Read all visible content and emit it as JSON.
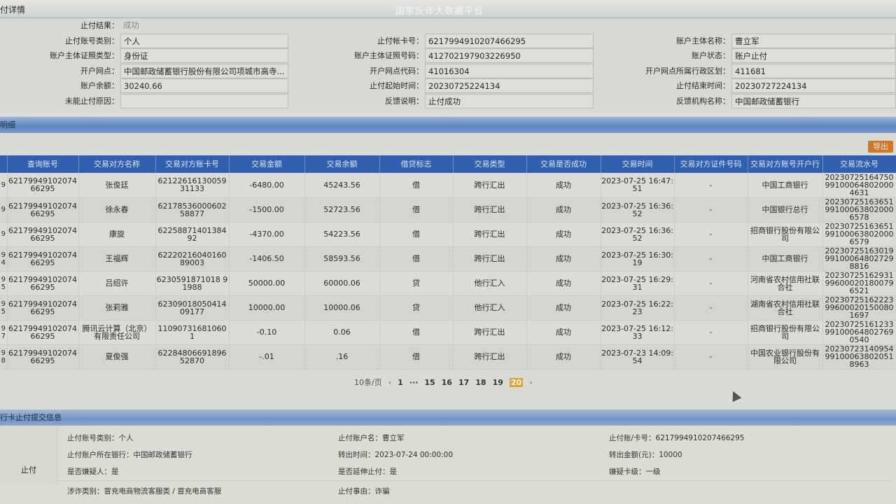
{
  "header": {
    "title": "付详情",
    "watermark": "国家反诈大数据平台"
  },
  "detail": {
    "rows": [
      [
        {
          "label": "止付结果：",
          "value": "成功"
        }
      ],
      [
        {
          "label": "止付账号类别：",
          "value": "个人"
        },
        {
          "label": "止付帐卡号：",
          "value": "6217994910207466295"
        },
        {
          "label": "账户主体名称：",
          "value": "曹立军"
        }
      ],
      [
        {
          "label": "账户主体证照类型：",
          "value": "身份证"
        },
        {
          "label": "账户主体证照号码：",
          "value": "412702197903226950"
        },
        {
          "label": "账户状态：",
          "value": "账户止付"
        }
      ],
      [
        {
          "label": "开户网点：",
          "value": "中国邮政储蓄银行股份有限公司项城市高寺..."
        },
        {
          "label": "开户网点代码：",
          "value": "41016304"
        },
        {
          "label": "开户网点所属行政区划：",
          "value": "411681"
        }
      ],
      [
        {
          "label": "账户余额：",
          "value": "30240.66"
        },
        {
          "label": "止付起始时间：",
          "value": "20230725224134"
        },
        {
          "label": "止付结束时间：",
          "value": "20230727224134"
        }
      ],
      [
        {
          "label": "未能止付原因：",
          "value": ""
        },
        {
          "label": "反馈说明：",
          "value": "止付成功"
        },
        {
          "label": "反馈机构名称：",
          "value": "中国邮政储蓄银行"
        }
      ]
    ]
  },
  "detail_section": {
    "title": "明细",
    "export_label": "导出"
  },
  "table": {
    "columns": [
      "",
      "查询账号",
      "交易对方名称",
      "交易对方账卡号",
      "交易金额",
      "交易余额",
      "借贷标志",
      "交易类型",
      "交易是否成功",
      "交易时间",
      "交易对方证件号码",
      "交易对方账号开户行",
      "交易流水号"
    ],
    "rows": [
      [
        "9",
        "6217994910207466295",
        "张俊廷",
        "6212261613005931133",
        "-6480.00",
        "45243.56",
        "借",
        "跨行汇出",
        "成功",
        "2023-07-25 16:47:51",
        "-",
        "中国工商银行",
        "20230725164750991000648020004631"
      ],
      [
        "9",
        "6217994910207466295",
        "徐永春",
        "6217853600060258877",
        "-1500.00",
        "52723.56",
        "借",
        "跨行汇出",
        "成功",
        "2023-07-25 16:36:52",
        "-",
        "中国银行总行",
        "20230725163651991000638020006578"
      ],
      [
        "9",
        "6217994910207466295",
        "康旋",
        "6225887140138492",
        "-4370.00",
        "54223.56",
        "借",
        "跨行汇出",
        "成功",
        "2023-07-25 16:36:52",
        "-",
        "招商银行股份有限公司",
        "20230725163651991000638020006579"
      ],
      [
        "9 4",
        "6217994910207466295",
        "王福辉",
        "6222021604016089003",
        "-1406.50",
        "58593.56",
        "借",
        "跨行汇出",
        "成功",
        "2023-07-25 16:30:19",
        "-",
        "中国工商银行",
        "20230725163019991000648027298816"
      ],
      [
        "9 5",
        "6217994910207466295",
        "吕绍许",
        "6230591871018 91988",
        "50000.00",
        "60000.06",
        "贷",
        "他行汇入",
        "成功",
        "2023-07-25 16:29:31",
        "-",
        "河南省农村信用社联合社",
        "20230725162931996000201800796521"
      ],
      [
        "9 5",
        "6217994910207466295",
        "张莉雅",
        "6230901805041409177",
        "10000.00",
        "10000.06",
        "贷",
        "他行汇入",
        "成功",
        "2023-07-25 16:22:23",
        "-",
        "湖南省农村信用社联合社",
        "20230725162223996000201500801697"
      ],
      [
        "9 7",
        "6217994910207466295",
        "腾讯云计算（北京）有限责任公司",
        "110907316810601",
        "-0.10",
        "0.06",
        "借",
        "跨行汇出",
        "成功",
        "2023-07-25 16:12:33",
        "-",
        "招商银行股份有限公司",
        "20230725161233991000648027690540"
      ],
      [
        "9 8",
        "6217994910207466295",
        "夏俊强",
        "6228480669189652870",
        "-.01",
        ".16",
        "借",
        "跨行汇出",
        "成功",
        "2023-07-23 14:09:54",
        "-",
        "中国农业银行股份有限公司",
        "20230723140954991000638020518963"
      ]
    ]
  },
  "pagination": {
    "page_size": "10条/页",
    "prev": "‹",
    "pages": [
      "1",
      "···",
      "15",
      "16",
      "17",
      "18",
      "19",
      "20"
    ],
    "current": "20",
    "next": "›"
  },
  "submit_section": {
    "title": "行卡止付提交信息",
    "type_label": "止付",
    "items": [
      [
        "止付账号类别：个人",
        "止付账户名：曹立军",
        "止付账/卡号：6217994910207466295"
      ],
      [
        "止付账户所在银行：中国邮政储蓄银行",
        "转出时间：2023-07-24 00:00:00",
        "转出金额(元)：10000"
      ],
      [
        "是否嫌疑人：是",
        "是否延伸止付：是",
        "嫌疑卡级：一级"
      ],
      [
        "涉诈类别：冒充电商物流客服类 / 冒充电商客服",
        "止付事由：诈骗"
      ]
    ]
  },
  "colors": {
    "header_blue": "#2f5fae",
    "export_orange": "#d0782a",
    "current_page": "#e0a236"
  }
}
